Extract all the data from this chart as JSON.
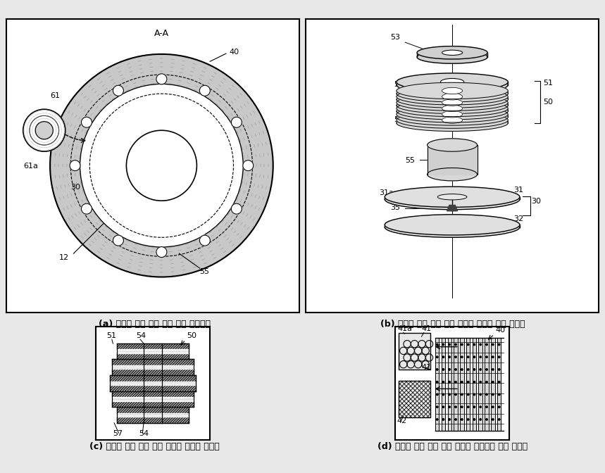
{
  "bg_color": "#e8e8e8",
  "panel_bg": "#ffffff",
  "line_color": "#000000",
  "gray_fill": "#c8c8c8",
  "light_gray": "#e0e0e0",
  "dark_gray": "#909090",
  "caption_a": "(a) 고압용 화염 배출 제거 밸브 횡단면도",
  "caption_b": "(b) 고압용 화염 배출 제거 밸브의 스프링 분해 사시도",
  "caption_c": "(c) 고압용 화염 배출 제거 밸브의 스프링 단면도",
  "caption_d": "(d) 고압용 화염 배출 제거 밸브의 엘리멘트 구조 설명도",
  "caption_fontsize": 9.0,
  "label_fontsize": 8,
  "title_fontsize": 9
}
